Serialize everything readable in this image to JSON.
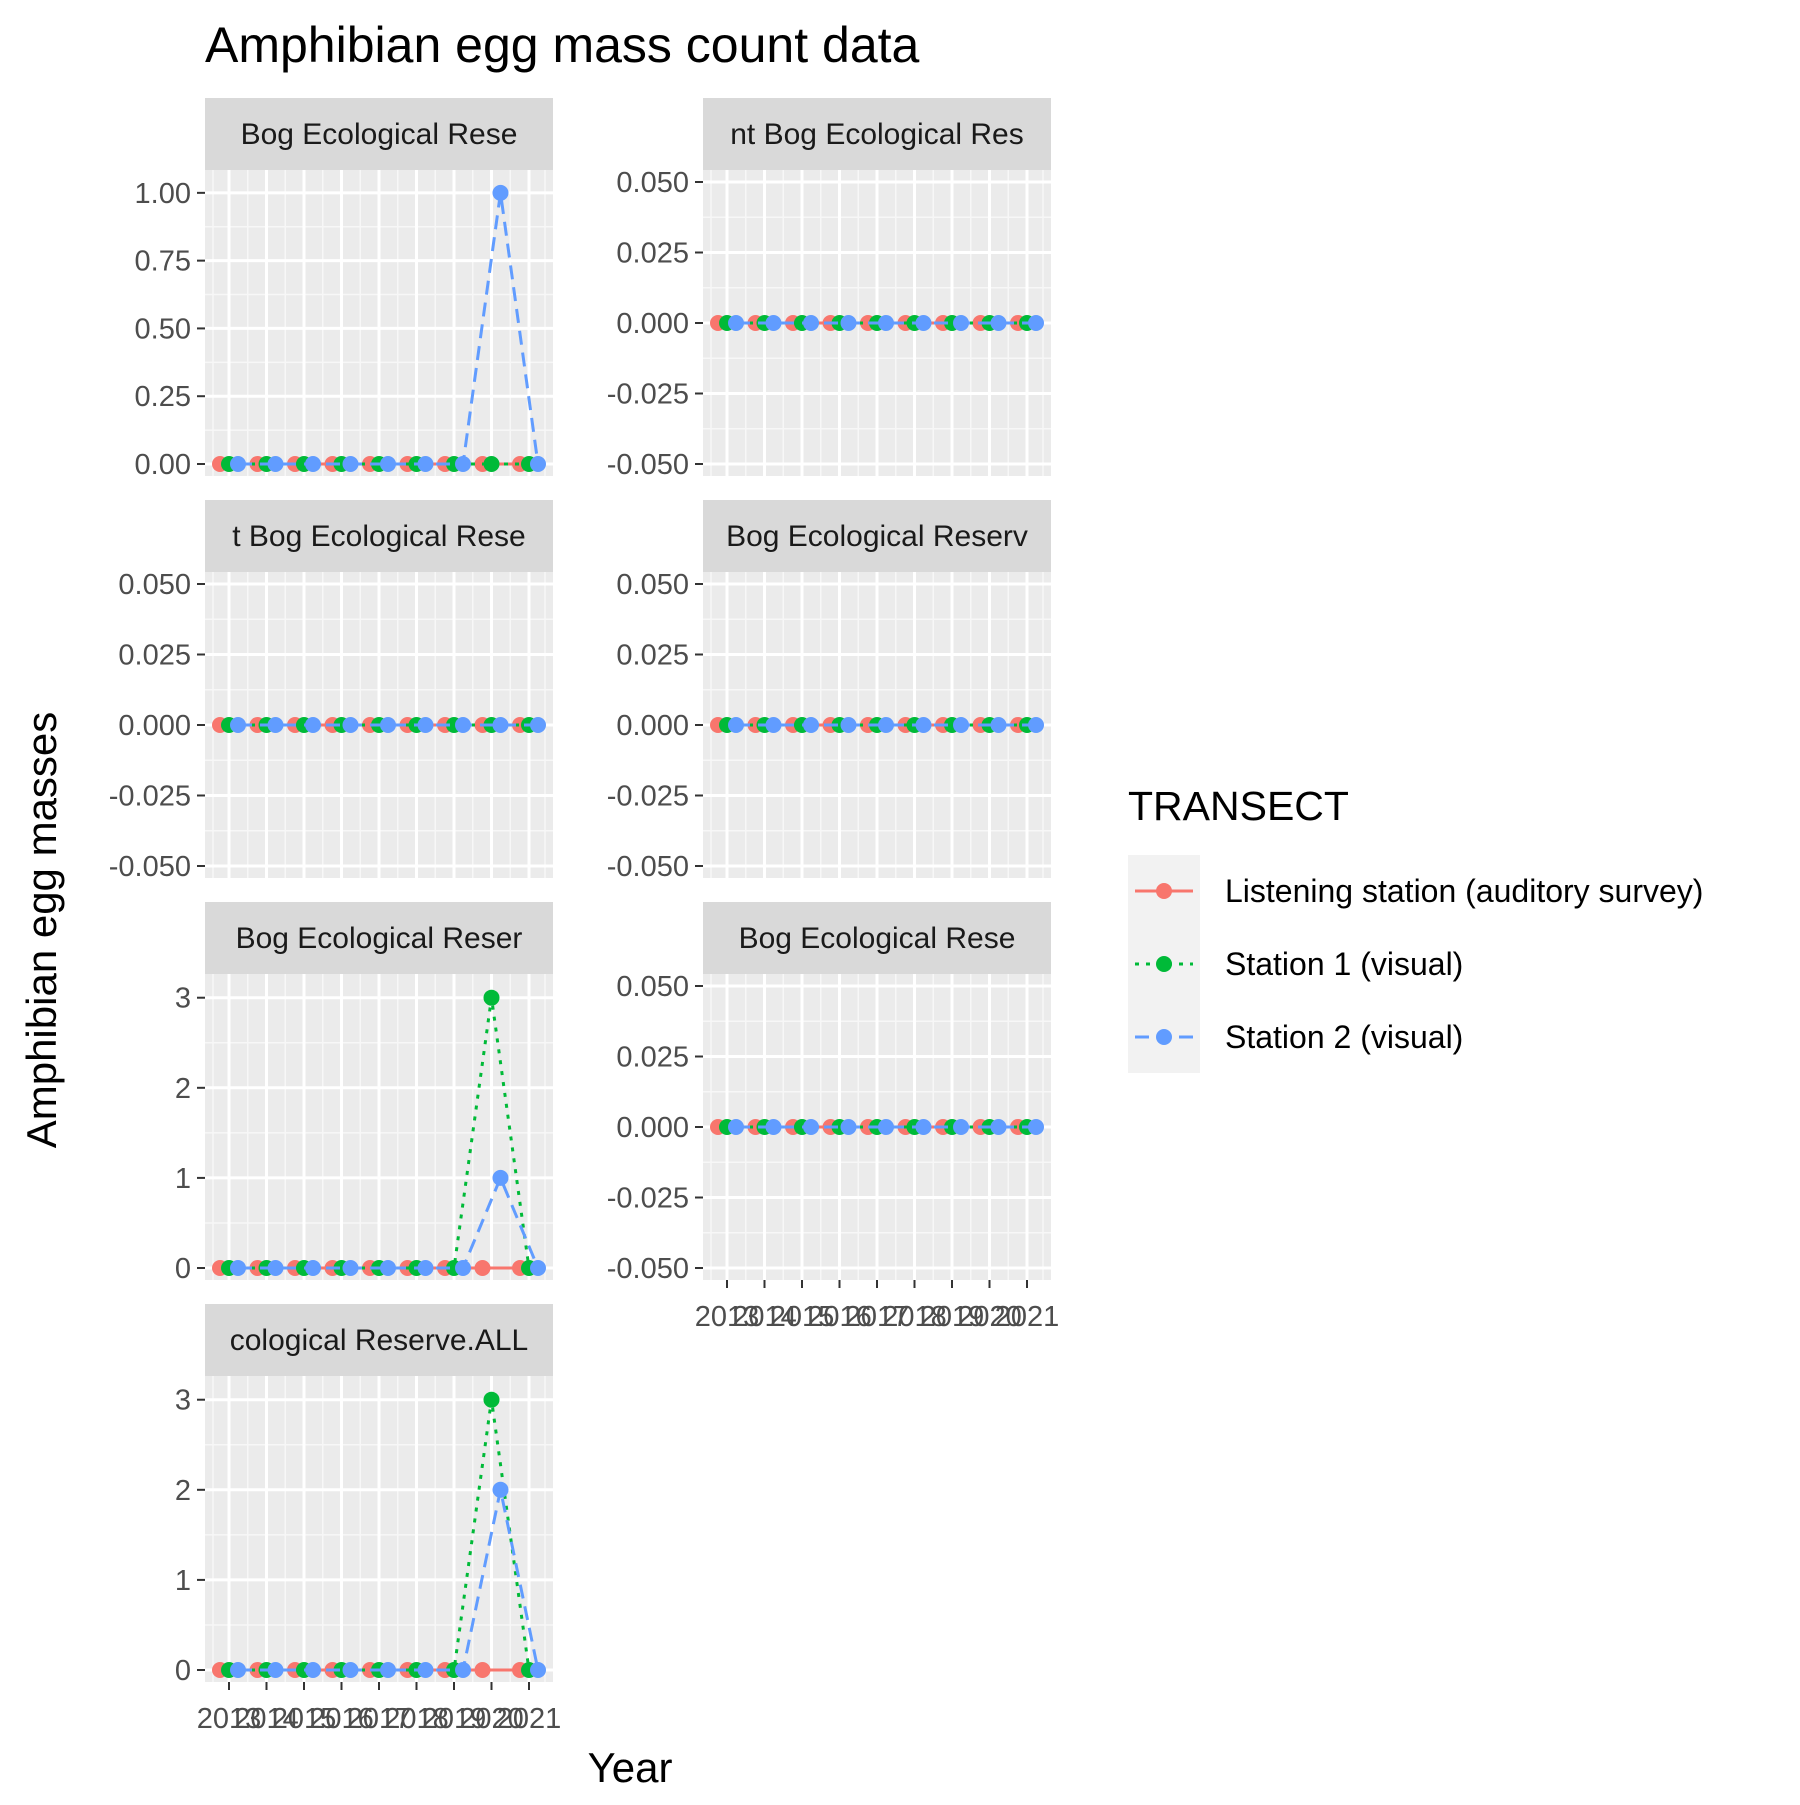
{
  "chart_data": {
    "type": "line",
    "title": "Amphibian egg mass count data",
    "xlabel": "Year",
    "ylabel": "Amphibian egg masses",
    "x_tick_labels": [
      "2013",
      "2014",
      "2015",
      "2016",
      "2017",
      "2018",
      "2019",
      "2020",
      "2021"
    ],
    "legend": {
      "title": "TRANSECT",
      "position": "right",
      "entries": [
        {
          "name": "Listening station (auditory survey)",
          "color": "#F8766D",
          "dash": "solid"
        },
        {
          "name": "Station 1 (visual)",
          "color": "#00BA38",
          "dash": "dotted"
        },
        {
          "name": "Station 2 (visual)",
          "color": "#619CFF",
          "dash": "dashed"
        }
      ]
    },
    "grid": true,
    "facets": [
      {
        "strip_label": "Bog Ecological Rese",
        "ylim": [
          0,
          1.04
        ],
        "y_ticks": [
          "0.00",
          "0.25",
          "0.50",
          "0.75",
          "1.00"
        ],
        "y_tick_values": [
          0,
          0.25,
          0.5,
          0.75,
          1.0
        ],
        "show_x_axis": false,
        "series": [
          {
            "name": "Listening station (auditory survey)",
            "x": [
              2013,
              2014,
              2015,
              2016,
              2017,
              2018,
              2019,
              2020,
              2021
            ],
            "values": [
              0,
              0,
              0,
              0,
              0,
              0,
              0,
              0,
              0
            ]
          },
          {
            "name": "Station 1 (visual)",
            "x": [
              2013,
              2014,
              2015,
              2016,
              2017,
              2018,
              2019,
              2020,
              2021
            ],
            "values": [
              0,
              0,
              0,
              0,
              0,
              0,
              0,
              0,
              0
            ]
          },
          {
            "name": "Station 2 (visual)",
            "x": [
              2013,
              2014,
              2015,
              2016,
              2017,
              2018,
              2019,
              2020,
              2021
            ],
            "values": [
              0,
              0,
              0,
              0,
              0,
              0,
              0,
              1,
              0
            ]
          }
        ]
      },
      {
        "strip_label": "nt Bog Ecological Res",
        "ylim": [
          -0.05,
          0.05
        ],
        "y_ticks": [
          "-0.050",
          "-0.025",
          "0.000",
          "0.025",
          "0.050"
        ],
        "y_tick_values": [
          -0.05,
          -0.025,
          0,
          0.025,
          0.05
        ],
        "show_x_axis": false,
        "series": [
          {
            "name": "Listening station (auditory survey)",
            "x": [
              2013,
              2014,
              2015,
              2016,
              2017,
              2018,
              2019,
              2020,
              2021
            ],
            "values": [
              0,
              0,
              0,
              0,
              0,
              0,
              0,
              0,
              0
            ]
          },
          {
            "name": "Station 1 (visual)",
            "x": [
              2013,
              2014,
              2015,
              2016,
              2017,
              2018,
              2019,
              2020,
              2021
            ],
            "values": [
              0,
              0,
              0,
              0,
              0,
              0,
              0,
              0,
              0
            ]
          },
          {
            "name": "Station 2 (visual)",
            "x": [
              2013,
              2014,
              2015,
              2016,
              2017,
              2018,
              2019,
              2020,
              2021
            ],
            "values": [
              0,
              0,
              0,
              0,
              0,
              0,
              0,
              0,
              0
            ]
          }
        ]
      },
      {
        "strip_label": "t Bog Ecological Rese",
        "ylim": [
          -0.05,
          0.05
        ],
        "y_ticks": [
          "-0.050",
          "-0.025",
          "0.000",
          "0.025",
          "0.050"
        ],
        "y_tick_values": [
          -0.05,
          -0.025,
          0,
          0.025,
          0.05
        ],
        "show_x_axis": false,
        "series": [
          {
            "name": "Listening station (auditory survey)",
            "x": [
              2013,
              2014,
              2015,
              2016,
              2017,
              2018,
              2019,
              2020,
              2021
            ],
            "values": [
              0,
              0,
              0,
              0,
              0,
              0,
              0,
              0,
              0
            ]
          },
          {
            "name": "Station 1 (visual)",
            "x": [
              2013,
              2014,
              2015,
              2016,
              2017,
              2018,
              2019,
              2020,
              2021
            ],
            "values": [
              0,
              0,
              0,
              0,
              0,
              0,
              0,
              0,
              0
            ]
          },
          {
            "name": "Station 2 (visual)",
            "x": [
              2013,
              2014,
              2015,
              2016,
              2017,
              2018,
              2019,
              2020,
              2021
            ],
            "values": [
              0,
              0,
              0,
              0,
              0,
              0,
              0,
              0,
              0
            ]
          }
        ]
      },
      {
        "strip_label": "Bog Ecological Reserv",
        "ylim": [
          -0.05,
          0.05
        ],
        "y_ticks": [
          "-0.050",
          "-0.025",
          "0.000",
          "0.025",
          "0.050"
        ],
        "y_tick_values": [
          -0.05,
          -0.025,
          0,
          0.025,
          0.05
        ],
        "show_x_axis": false,
        "series": [
          {
            "name": "Listening station (auditory survey)",
            "x": [
              2013,
              2014,
              2015,
              2016,
              2017,
              2018,
              2019,
              2020,
              2021
            ],
            "values": [
              0,
              0,
              0,
              0,
              0,
              0,
              0,
              0,
              0
            ]
          },
          {
            "name": "Station 1 (visual)",
            "x": [
              2013,
              2014,
              2015,
              2016,
              2017,
              2018,
              2019,
              2020,
              2021
            ],
            "values": [
              0,
              0,
              0,
              0,
              0,
              0,
              0,
              0,
              0
            ]
          },
          {
            "name": "Station 2 (visual)",
            "x": [
              2013,
              2014,
              2015,
              2016,
              2017,
              2018,
              2019,
              2020,
              2021
            ],
            "values": [
              0,
              0,
              0,
              0,
              0,
              0,
              0,
              0,
              0
            ]
          }
        ]
      },
      {
        "strip_label": "Bog Ecological Reser",
        "ylim": [
          0,
          3.13
        ],
        "y_ticks": [
          "0",
          "1",
          "2",
          "3"
        ],
        "y_tick_values": [
          0,
          1,
          2,
          3
        ],
        "show_x_axis": false,
        "series": [
          {
            "name": "Listening station (auditory survey)",
            "x": [
              2013,
              2014,
              2015,
              2016,
              2017,
              2018,
              2019,
              2020,
              2021
            ],
            "values": [
              0,
              0,
              0,
              0,
              0,
              0,
              0,
              0,
              0
            ]
          },
          {
            "name": "Station 1 (visual)",
            "x": [
              2013,
              2014,
              2015,
              2016,
              2017,
              2018,
              2019,
              2020,
              2021
            ],
            "values": [
              0,
              0,
              0,
              0,
              0,
              0,
              0,
              3,
              0
            ]
          },
          {
            "name": "Station 2 (visual)",
            "x": [
              2013,
              2014,
              2015,
              2016,
              2017,
              2018,
              2019,
              2020,
              2021
            ],
            "values": [
              0,
              0,
              0,
              0,
              0,
              0,
              0,
              1,
              0
            ]
          }
        ]
      },
      {
        "strip_label": "Bog Ecological Rese",
        "ylim": [
          -0.05,
          0.05
        ],
        "y_ticks": [
          "-0.050",
          "-0.025",
          "0.000",
          "0.025",
          "0.050"
        ],
        "y_tick_values": [
          -0.05,
          -0.025,
          0,
          0.025,
          0.05
        ],
        "show_x_axis": true,
        "series": [
          {
            "name": "Listening station (auditory survey)",
            "x": [
              2013,
              2014,
              2015,
              2016,
              2017,
              2018,
              2019,
              2020,
              2021
            ],
            "values": [
              0,
              0,
              0,
              0,
              0,
              0,
              0,
              0,
              0
            ]
          },
          {
            "name": "Station 1 (visual)",
            "x": [
              2013,
              2014,
              2015,
              2016,
              2017,
              2018,
              2019,
              2020,
              2021
            ],
            "values": [
              0,
              0,
              0,
              0,
              0,
              0,
              0,
              0,
              0
            ]
          },
          {
            "name": "Station 2 (visual)",
            "x": [
              2013,
              2014,
              2015,
              2016,
              2017,
              2018,
              2019,
              2020,
              2021
            ],
            "values": [
              0,
              0,
              0,
              0,
              0,
              0,
              0,
              0,
              0
            ]
          }
        ]
      },
      {
        "strip_label": "cological Reserve.ALL",
        "ylim": [
          0,
          3.13
        ],
        "y_ticks": [
          "0",
          "1",
          "2",
          "3"
        ],
        "y_tick_values": [
          0,
          1,
          2,
          3
        ],
        "show_x_axis": true,
        "series": [
          {
            "name": "Listening station (auditory survey)",
            "x": [
              2013,
              2014,
              2015,
              2016,
              2017,
              2018,
              2019,
              2020,
              2021
            ],
            "values": [
              0,
              0,
              0,
              0,
              0,
              0,
              0,
              0,
              0
            ]
          },
          {
            "name": "Station 1 (visual)",
            "x": [
              2013,
              2014,
              2015,
              2016,
              2017,
              2018,
              2019,
              2020,
              2021
            ],
            "values": [
              0,
              0,
              0,
              0,
              0,
              0,
              0,
              3,
              0
            ]
          },
          {
            "name": "Station 2 (visual)",
            "x": [
              2013,
              2014,
              2015,
              2016,
              2017,
              2018,
              2019,
              2020,
              2021
            ],
            "values": [
              0,
              0,
              0,
              0,
              0,
              0,
              0,
              2,
              0
            ]
          }
        ]
      }
    ]
  }
}
